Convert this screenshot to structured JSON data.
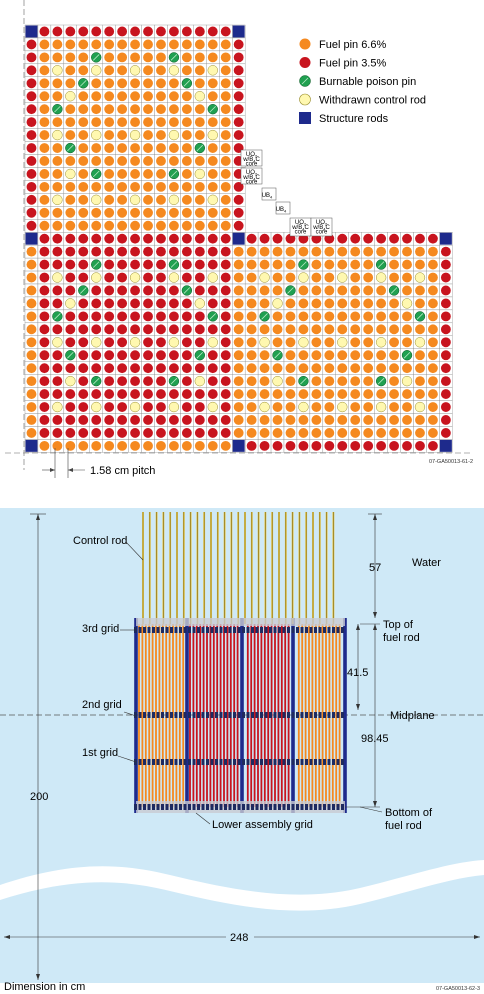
{
  "colors": {
    "fuel_66": "#f5891f",
    "fuel_35": "#c8141e",
    "burnable_poison": "#20a050",
    "withdrawn_rod": "#fff8b0",
    "structure_rod": "#1e2a8c",
    "water": "#cfe9f7",
    "grid_stroke": "#555555"
  },
  "legend": {
    "items": [
      {
        "key": "fuel_66",
        "label": "Fuel pin 6.6%"
      },
      {
        "key": "fuel_35",
        "label": "Fuel pin 3.5%"
      },
      {
        "key": "burnable_poison",
        "label": "Burnable poison pin"
      },
      {
        "key": "withdrawn_rod",
        "label": "Withdrawn control rod"
      },
      {
        "key": "structure_rod",
        "label": "Structure rods"
      }
    ]
  },
  "top": {
    "pitch_label": "1.58 cm pitch",
    "figure_id": "07-GA50013-61-2",
    "box_labels": {
      "uo2_core_line1": "UO",
      "uo2_core_line2": "w/B",
      "uo2_core_line3": "core",
      "ub4": "UB"
    }
  },
  "bottom": {
    "labels": {
      "control_rod": "Control rod",
      "water": "Water",
      "grid3": "3rd grid",
      "grid2": "2nd grid",
      "grid1": "1st grid",
      "top_of_fuel_line1": "Top of",
      "top_of_fuel_line2": "fuel rod",
      "midplane": "Midplane",
      "bottom_of_fuel_line1": "Bottom of",
      "bottom_of_fuel_line2": "fuel rod",
      "lower_grid": "Lower assembly grid",
      "dimension_units": "Dimension in cm",
      "figure_id": "07-GA50013-62-3"
    },
    "dimensions": {
      "d57": "57",
      "d41_5": "41.5",
      "d98_45": "98.45",
      "d200": "200",
      "d248": "248"
    }
  }
}
